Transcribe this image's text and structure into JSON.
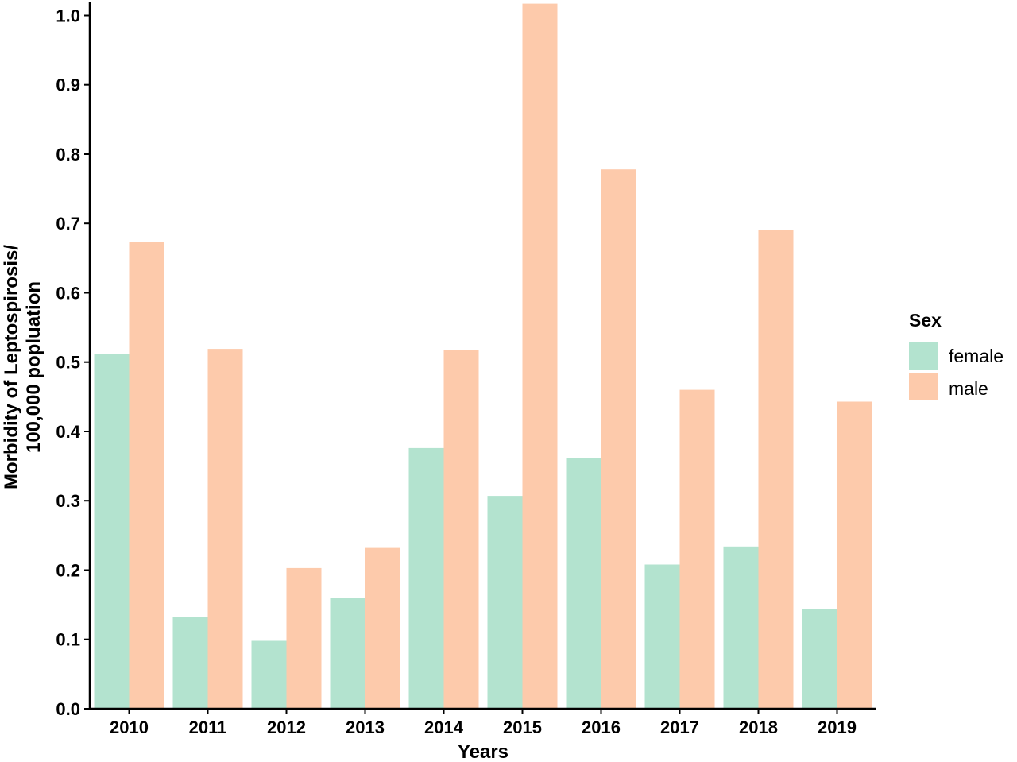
{
  "chart_data": {
    "type": "bar",
    "title": "",
    "xlabel": "Years",
    "ylabel_lines": [
      "Morbidity of Leptospirosis/",
      "100,000 popluation"
    ],
    "categories": [
      "2010",
      "2011",
      "2012",
      "2013",
      "2014",
      "2015",
      "2016",
      "2017",
      "2018",
      "2019"
    ],
    "series": [
      {
        "name": "female",
        "color": "#b3e3cf",
        "values": [
          0.512,
          0.133,
          0.098,
          0.16,
          0.376,
          0.307,
          0.362,
          0.208,
          0.234,
          0.144
        ]
      },
      {
        "name": "male",
        "color": "#fdcaab",
        "values": [
          0.673,
          0.519,
          0.203,
          0.232,
          0.518,
          1.017,
          0.778,
          0.46,
          0.691,
          0.443
        ]
      }
    ],
    "yticks": [
      "0.0",
      "0.1",
      "0.2",
      "0.3",
      "0.4",
      "0.5",
      "0.6",
      "0.7",
      "0.8",
      "0.9",
      "1.0"
    ],
    "ylim": [
      0,
      1.02
    ],
    "legend": {
      "title": "Sex",
      "placement": "right"
    },
    "grid": false
  }
}
